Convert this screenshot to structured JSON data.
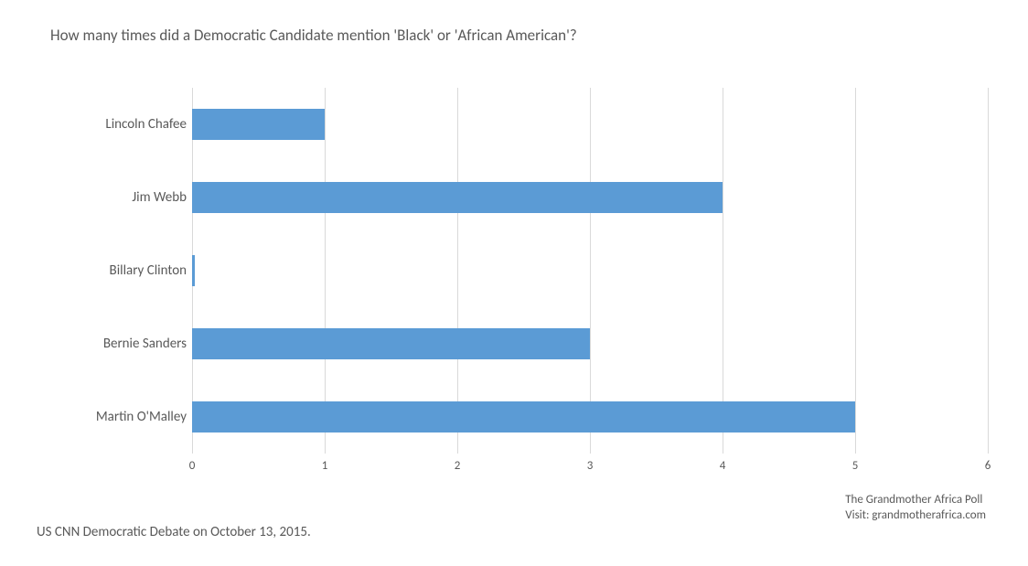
{
  "chart": {
    "type": "bar-horizontal",
    "title": "How many times did a Democratic Candidate mention 'Black' or 'African American'?",
    "title_fontsize": 17,
    "title_color": "#595959",
    "background_color": "#ffffff",
    "bar_color": "#5b9bd5",
    "grid_color": "#d9d9d9",
    "label_color": "#595959",
    "label_fontsize": 15,
    "tick_fontsize": 13,
    "xlim": [
      0,
      6
    ],
    "xtick_step": 1,
    "xticks": [
      0,
      1,
      2,
      3,
      4,
      5,
      6
    ],
    "bar_height_ratio": 0.43,
    "categories": [
      "Lincoln Chafee",
      "Jim Webb",
      "Billary Clinton",
      "Bernie Sanders",
      "Martin O'Malley"
    ],
    "values": [
      1,
      4,
      0.02,
      3,
      5
    ],
    "caption": "US CNN Democratic Debate on October 13, 2015.",
    "source_line1": "The Grandmother Africa Poll",
    "source_line2": "Visit: grandmotherafrica.com"
  }
}
